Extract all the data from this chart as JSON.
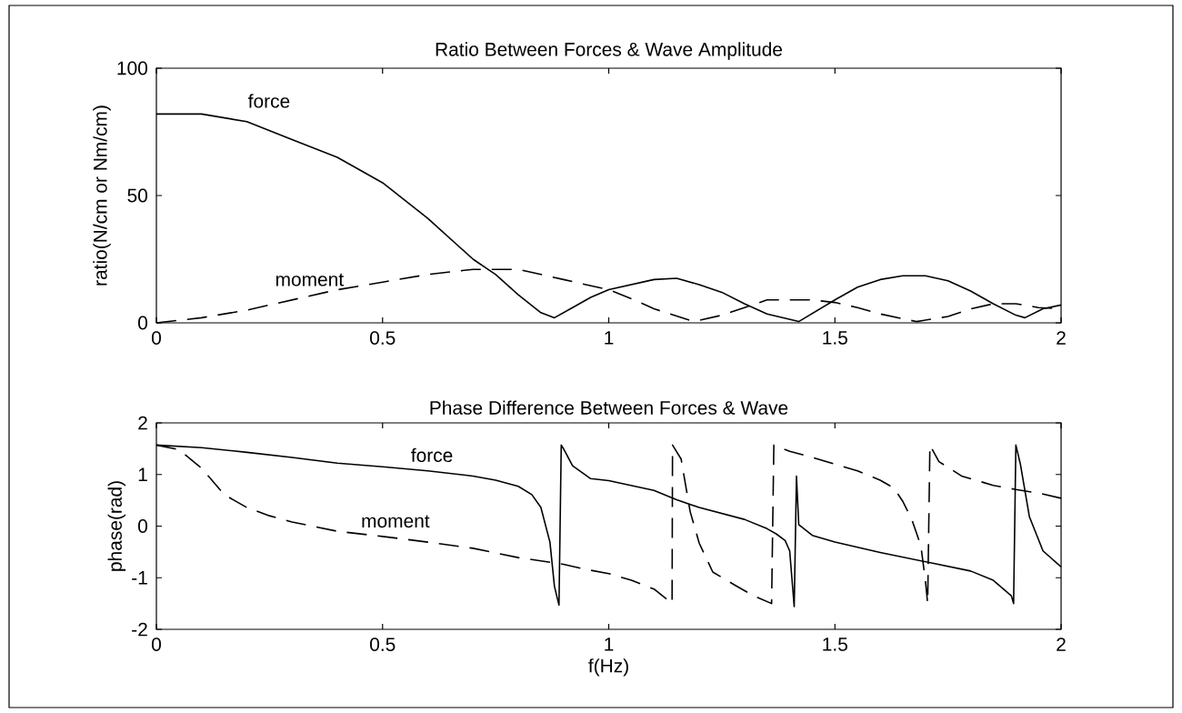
{
  "chart_data": [
    {
      "type": "line",
      "title": "Ratio Between Forces & Wave Amplitude",
      "ylabel": "ratio(N/cm or Nm/cm)",
      "xlim": [
        0,
        2
      ],
      "ylim": [
        0,
        100
      ],
      "xticks": [
        0,
        0.5,
        1,
        1.5,
        2
      ],
      "yticks": [
        0,
        50,
        100
      ],
      "grid": false,
      "legend": false,
      "marker": "none",
      "series": [
        {
          "name": "force",
          "color": "#000000",
          "line_style": "solid",
          "x": [
            0,
            0.1,
            0.2,
            0.3,
            0.4,
            0.5,
            0.6,
            0.7,
            0.75,
            0.8,
            0.85,
            0.88,
            0.92,
            0.96,
            1.0,
            1.05,
            1.1,
            1.15,
            1.2,
            1.25,
            1.3,
            1.35,
            1.42,
            1.5,
            1.55,
            1.6,
            1.65,
            1.7,
            1.75,
            1.8,
            1.85,
            1.9,
            1.92,
            1.96,
            2.0
          ],
          "values": [
            82,
            82,
            79,
            72,
            65,
            55,
            41,
            25,
            19,
            11,
            4,
            2,
            6,
            10,
            13,
            15,
            17,
            17.5,
            15,
            12,
            7.5,
            3.5,
            0.5,
            9,
            14,
            17,
            18.5,
            18.5,
            16.5,
            12.5,
            7.5,
            3,
            2,
            5.5,
            7
          ]
        },
        {
          "name": "moment",
          "color": "#000000",
          "line_style": "dashed",
          "x": [
            0,
            0.1,
            0.2,
            0.3,
            0.4,
            0.5,
            0.6,
            0.7,
            0.8,
            0.9,
            1.0,
            1.05,
            1.1,
            1.18,
            1.2,
            1.25,
            1.3,
            1.35,
            1.4,
            1.45,
            1.5,
            1.55,
            1.6,
            1.68,
            1.75,
            1.8,
            1.85,
            1.9,
            1.95,
            2.0
          ],
          "values": [
            0,
            2,
            5,
            9,
            13,
            16,
            19,
            21,
            21,
            17,
            13,
            9.5,
            5.5,
            1,
            1,
            3,
            6,
            9,
            9,
            9,
            8,
            6,
            3.5,
            0.5,
            2.5,
            5.5,
            7.5,
            7.5,
            6,
            5.5
          ]
        }
      ]
    },
    {
      "type": "line",
      "title": "Phase Difference Between Forces & Wave",
      "xlabel": "f(Hz)",
      "ylabel": "phase(rad)",
      "xlim": [
        0,
        2
      ],
      "ylim": [
        -2,
        2
      ],
      "xticks": [
        0,
        0.5,
        1,
        1.5,
        2
      ],
      "yticks": [
        -2,
        -1,
        0,
        1,
        2
      ],
      "grid": false,
      "legend": false,
      "marker": "none",
      "series": [
        {
          "name": "force",
          "color": "#000000",
          "line_style": "solid",
          "x": [
            0,
            0.1,
            0.2,
            0.3,
            0.4,
            0.5,
            0.6,
            0.7,
            0.75,
            0.8,
            0.83,
            0.85,
            0.87,
            0.88,
            0.89,
            0.895,
            0.9,
            0.92,
            0.96,
            1.0,
            1.1,
            1.15,
            1.2,
            1.3,
            1.35,
            1.37,
            1.39,
            1.4,
            1.41,
            1.415,
            1.42,
            1.45,
            1.5,
            1.6,
            1.7,
            1.8,
            1.85,
            1.89,
            1.895,
            1.9,
            1.91,
            1.93,
            1.96,
            2.0
          ],
          "values": [
            1.57,
            1.52,
            1.43,
            1.33,
            1.22,
            1.15,
            1.07,
            0.97,
            0.89,
            0.77,
            0.61,
            0.36,
            -0.31,
            -1.17,
            -1.53,
            1.57,
            1.5,
            1.17,
            0.92,
            0.88,
            0.69,
            0.51,
            0.36,
            0.13,
            -0.05,
            -0.15,
            -0.28,
            -0.48,
            -1.56,
            0.97,
            0.03,
            -0.18,
            -0.31,
            -0.51,
            -0.69,
            -0.87,
            -1.05,
            -1.35,
            -1.5,
            1.57,
            1.2,
            0.18,
            -0.48,
            -0.79
          ]
        },
        {
          "name": "moment",
          "color": "#000000",
          "line_style": "dashed",
          "x": [
            0,
            0.05,
            0.1,
            0.15,
            0.2,
            0.25,
            0.3,
            0.4,
            0.5,
            0.6,
            0.7,
            0.8,
            0.9,
            0.95,
            1.0,
            1.05,
            1.1,
            1.14,
            1.141,
            1.16,
            1.17,
            1.18,
            1.2,
            1.23,
            1.28,
            1.32,
            1.36,
            1.365,
            1.4,
            1.45,
            1.5,
            1.55,
            1.6,
            1.63,
            1.65,
            1.67,
            1.69,
            1.7,
            1.705,
            1.71,
            1.73,
            1.78,
            1.85,
            1.9,
            1.95,
            2.0
          ],
          "values": [
            1.57,
            1.48,
            1.12,
            0.61,
            0.36,
            0.2,
            0.08,
            -0.1,
            -0.2,
            -0.31,
            -0.43,
            -0.61,
            -0.74,
            -0.84,
            -0.92,
            -1.05,
            -1.22,
            -1.5,
            1.57,
            1.3,
            0.79,
            0.28,
            -0.33,
            -0.89,
            -1.15,
            -1.35,
            -1.5,
            1.57,
            1.45,
            1.33,
            1.2,
            1.07,
            0.89,
            0.74,
            0.48,
            0.13,
            -0.38,
            -1.05,
            -1.5,
            1.57,
            1.25,
            0.97,
            0.79,
            0.71,
            0.64,
            0.54
          ]
        }
      ]
    }
  ]
}
